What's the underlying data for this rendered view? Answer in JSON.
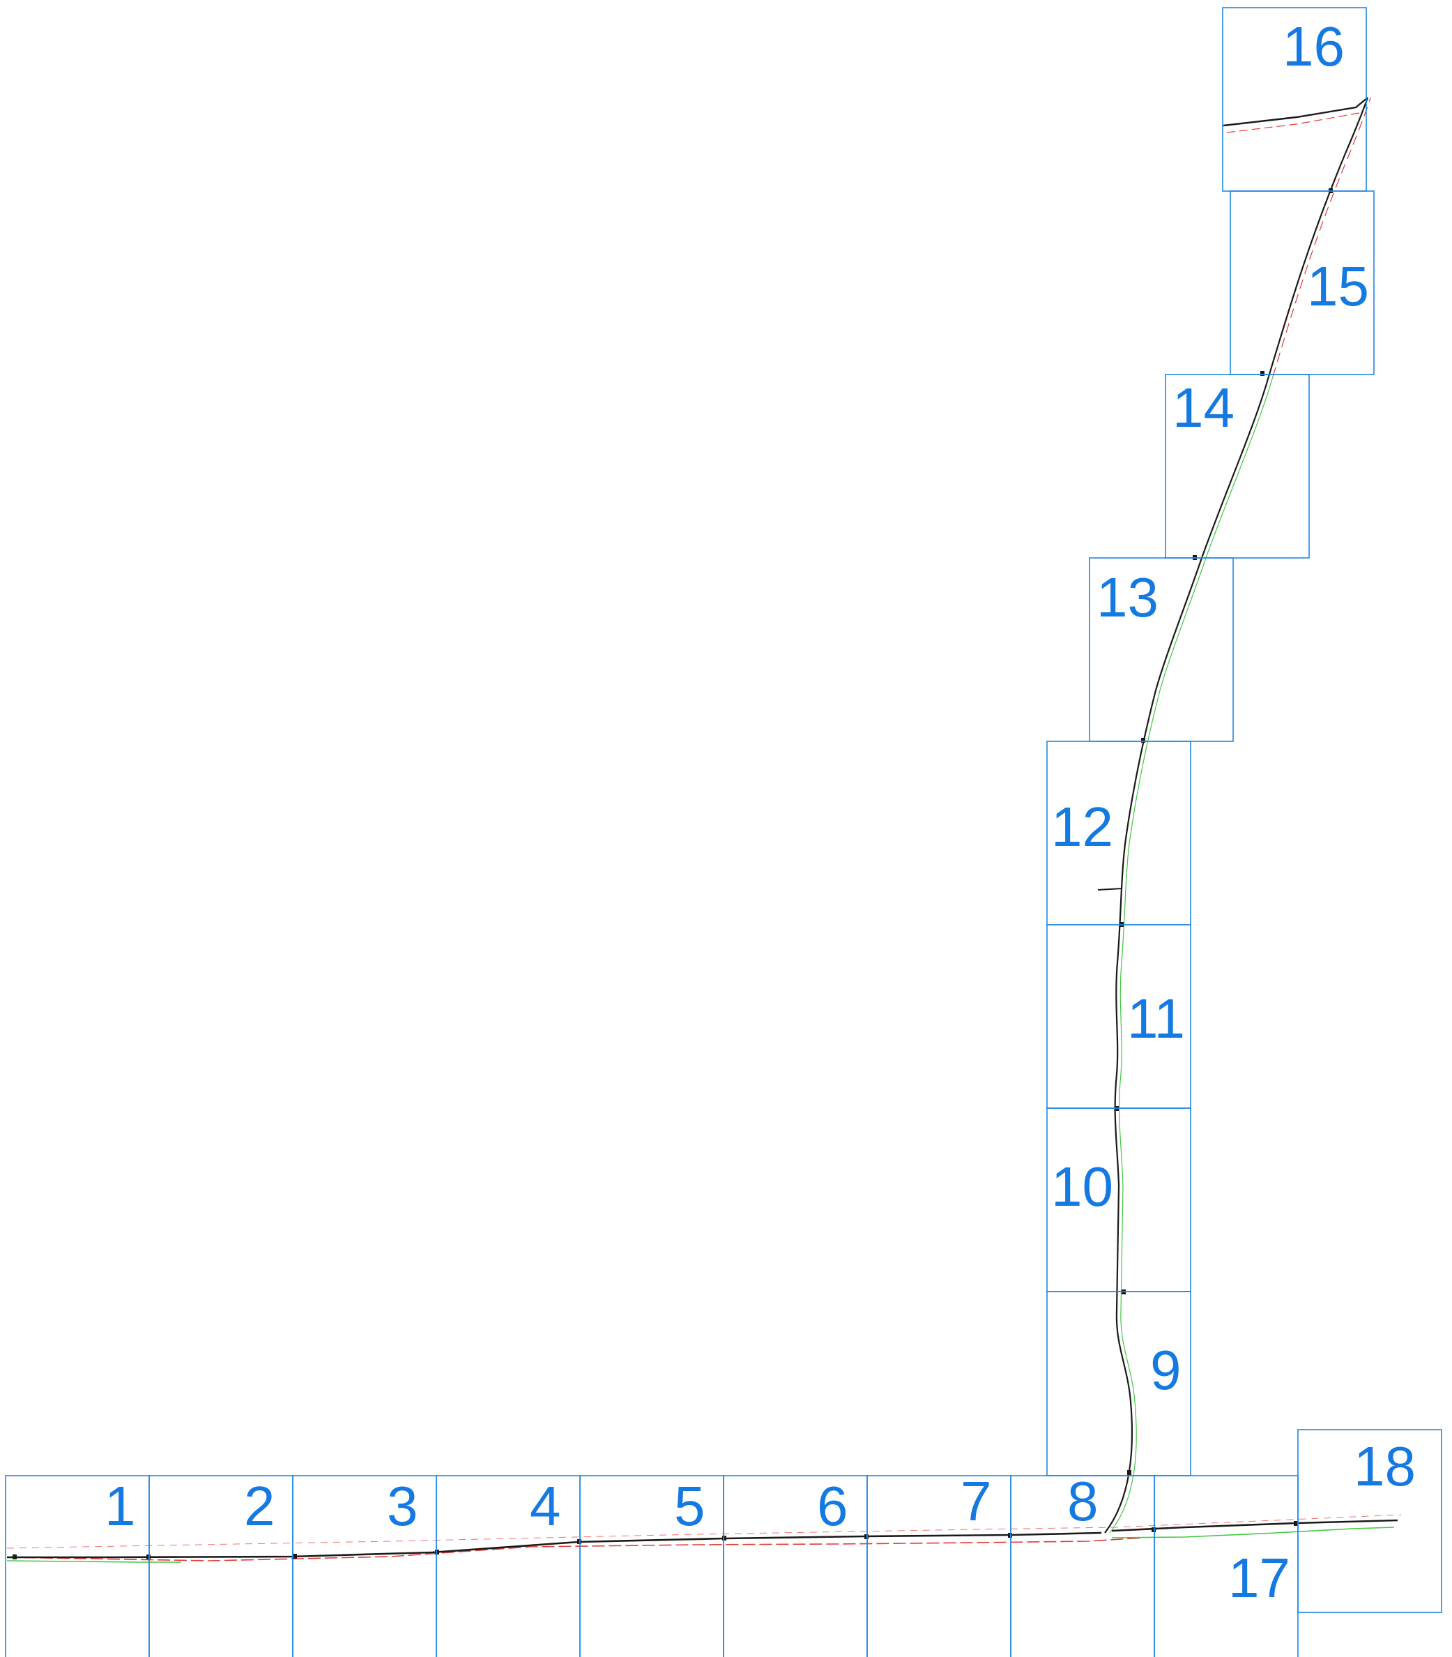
{
  "colors": {
    "sheet_border": "#1e88e5",
    "sheet_label": "#1479e0",
    "route_line": "#1a1a1a",
    "edge_line_red": "#e53935",
    "edge_line_green": "#43c743"
  },
  "sheets": [
    {
      "label": "1"
    },
    {
      "label": "2"
    },
    {
      "label": "3"
    },
    {
      "label": "4"
    },
    {
      "label": "5"
    },
    {
      "label": "6"
    },
    {
      "label": "7"
    },
    {
      "label": "8"
    },
    {
      "label": "9"
    },
    {
      "label": "10"
    },
    {
      "label": "11"
    },
    {
      "label": "12"
    },
    {
      "label": "13"
    },
    {
      "label": "14"
    },
    {
      "label": "15"
    },
    {
      "label": "16"
    },
    {
      "label": "17"
    },
    {
      "label": "18"
    }
  ]
}
